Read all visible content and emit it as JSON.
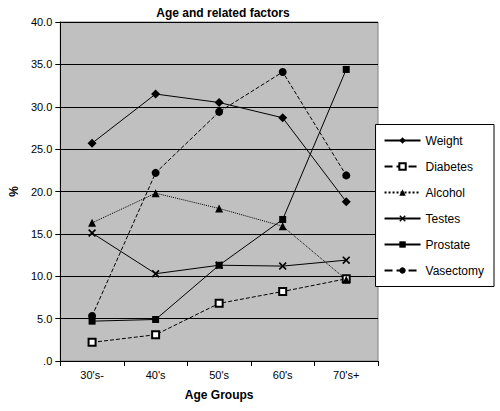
{
  "chart_data": {
    "type": "line",
    "title": "Age and related factors",
    "x_label": "Age Groups",
    "y_label": "%",
    "categories": [
      "30's-",
      "40's",
      "50's",
      "60's",
      "70's+"
    ],
    "series": [
      {
        "name": "Weight",
        "color": "#000000",
        "marker": "diamond",
        "line_style": "solid",
        "values": [
          25.7,
          31.5,
          30.5,
          28.7,
          18.8
        ]
      },
      {
        "name": "Diabetes",
        "color": "#000000",
        "marker": "open_square",
        "line_style": "dashed",
        "values": [
          2.2,
          3.1,
          6.8,
          8.2,
          9.7
        ]
      },
      {
        "name": "Alcohol",
        "color": "#000000",
        "marker": "triangle",
        "line_style": "dotted",
        "values": [
          16.3,
          19.8,
          18.0,
          15.9,
          9.6
        ]
      },
      {
        "name": "Testes",
        "color": "#000000",
        "marker": "x",
        "line_style": "solid",
        "values": [
          15.1,
          10.3,
          11.3,
          11.2,
          11.9
        ]
      },
      {
        "name": "Prostate",
        "color": "#000000",
        "marker": "square",
        "line_style": "solid",
        "values": [
          4.7,
          4.9,
          11.3,
          16.7,
          34.4
        ]
      },
      {
        "name": "Vasectomy",
        "color": "#000000",
        "marker": "circle",
        "line_style": "dashed",
        "values": [
          5.3,
          22.2,
          29.4,
          34.1,
          21.9
        ]
      }
    ],
    "ylim": [
      0,
      40
    ],
    "yticks": [
      {
        "value": 0,
        "label": ".0"
      },
      {
        "value": 5,
        "label": "5.0"
      },
      {
        "value": 10,
        "label": "10.0"
      },
      {
        "value": 15,
        "label": "15.0"
      },
      {
        "value": 20,
        "label": "20.0"
      },
      {
        "value": 25,
        "label": "25.0"
      },
      {
        "value": 30,
        "label": "30.0"
      },
      {
        "value": 35,
        "label": "35.0"
      },
      {
        "value": 40,
        "label": "40.0"
      }
    ],
    "grid": true,
    "legend": "right"
  }
}
